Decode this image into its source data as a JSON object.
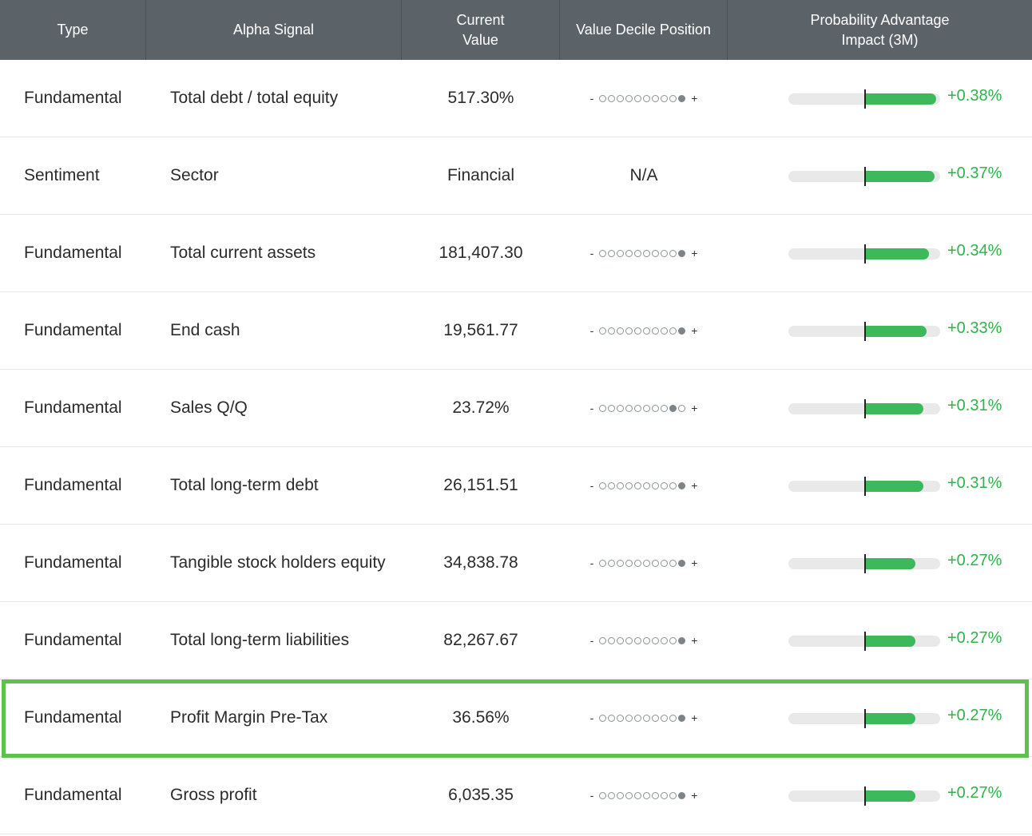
{
  "header": {
    "type": "Type",
    "signal": "Alpha Signal",
    "value": "Current Value",
    "decile": "Value Decile Position",
    "impact": "Probability Advantage Impact (3M)"
  },
  "colors": {
    "accent": "#3db85a",
    "header_bg": "#5b6368",
    "highlight": "#5cc24a"
  },
  "rows": [
    {
      "type": "Fundamental",
      "signal": "Total debt / total equity",
      "value": "517.30%",
      "decile": 10,
      "impact": "+0.38%",
      "impact_num": 0.38
    },
    {
      "type": "Sentiment",
      "signal": "Sector",
      "value": "Financial",
      "decile_text": "N/A",
      "impact": "+0.37%",
      "impact_num": 0.37
    },
    {
      "type": "Fundamental",
      "signal": "Total current assets",
      "value": "181,407.30",
      "decile": 10,
      "impact": "+0.34%",
      "impact_num": 0.34
    },
    {
      "type": "Fundamental",
      "signal": "End cash",
      "value": "19,561.77",
      "decile": 10,
      "impact": "+0.33%",
      "impact_num": 0.33
    },
    {
      "type": "Fundamental",
      "signal": "Sales Q/Q",
      "value": "23.72%",
      "decile": 9,
      "impact": "+0.31%",
      "impact_num": 0.31
    },
    {
      "type": "Fundamental",
      "signal": "Total long-term debt",
      "value": "26,151.51",
      "decile": 10,
      "impact": "+0.31%",
      "impact_num": 0.31
    },
    {
      "type": "Fundamental",
      "signal": "Tangible stock holders equity",
      "value": "34,838.78",
      "decile": 10,
      "impact": "+0.27%",
      "impact_num": 0.27
    },
    {
      "type": "Fundamental",
      "signal": "Total long-term liabilities",
      "value": "82,267.67",
      "decile": 10,
      "impact": "+0.27%",
      "impact_num": 0.27
    },
    {
      "type": "Fundamental",
      "signal": "Profit Margin Pre-Tax",
      "value": "36.56%",
      "decile": 10,
      "impact": "+0.27%",
      "impact_num": 0.27,
      "highlighted": true
    },
    {
      "type": "Fundamental",
      "signal": "Gross profit",
      "value": "6,035.35",
      "decile": 10,
      "impact": "+0.27%",
      "impact_num": 0.27
    }
  ]
}
